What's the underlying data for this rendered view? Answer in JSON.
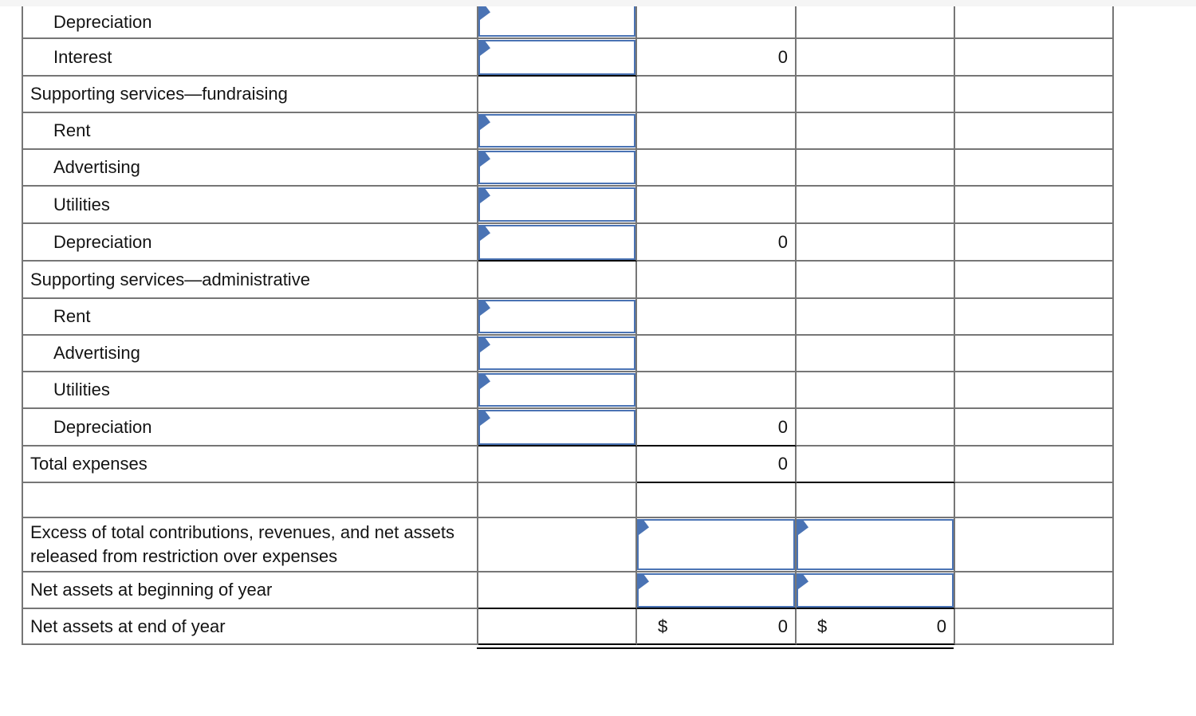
{
  "colors": {
    "accent_blue": "#4a73b4",
    "grid_gray": "#767676",
    "rule_black": "#000000",
    "page_edge_gray": "#f5f5f5"
  },
  "icons": {
    "input_marker": "flag-icon"
  },
  "table": {
    "rows": [
      {
        "label": "Depreciation",
        "indent": true,
        "col2_input": true
      },
      {
        "label": "Interest",
        "indent": true,
        "col2_input": true,
        "col3_value": "0"
      },
      {
        "label": "Supporting services—fundraising",
        "indent": false
      },
      {
        "label": "Rent",
        "indent": true,
        "col2_input": true
      },
      {
        "label": "Advertising",
        "indent": true,
        "col2_input": true
      },
      {
        "label": "Utilities",
        "indent": true,
        "col2_input": true
      },
      {
        "label": "Depreciation",
        "indent": true,
        "col2_input": true,
        "col3_value": "0"
      },
      {
        "label": "Supporting services—administrative",
        "indent": false
      },
      {
        "label": "Rent",
        "indent": true,
        "col2_input": true
      },
      {
        "label": "Advertising",
        "indent": true,
        "col2_input": true
      },
      {
        "label": "Utilities",
        "indent": true,
        "col2_input": true
      },
      {
        "label": "Depreciation",
        "indent": true,
        "col2_input": true,
        "col3_value": "0"
      },
      {
        "label": "Total expenses",
        "indent": false,
        "col3_value": "0"
      },
      {
        "label": "",
        "indent": false
      },
      {
        "label": "Excess of total contributions, revenues, and net assets released from restriction over expenses",
        "indent": false,
        "col3_input": true,
        "col4_input": true
      },
      {
        "label": "Net assets at beginning of year",
        "indent": false,
        "col3_input": true,
        "col4_input": true
      },
      {
        "label": "Net assets at end of year",
        "indent": false,
        "col3_symbol": "$",
        "col3_value": "0",
        "col4_symbol": "$",
        "col4_value": "0"
      }
    ]
  }
}
